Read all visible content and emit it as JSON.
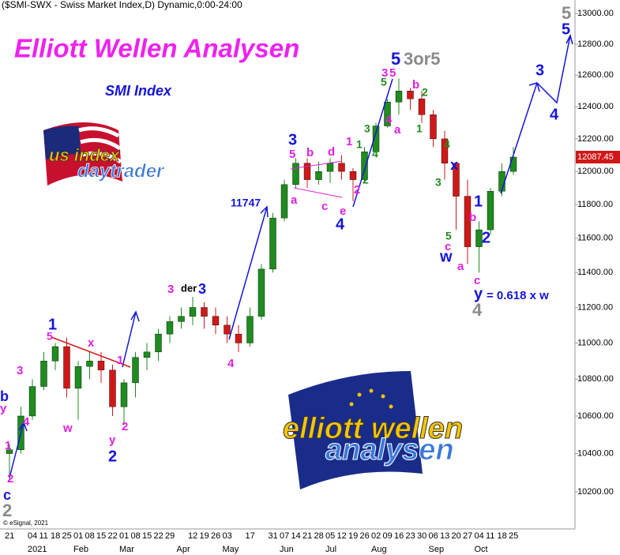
{
  "chart_data": {
    "type": "candlestick",
    "header": "($SMI-SWX - Swiss Market Index,D) Dynamic,0:00-24:00",
    "title": "Elliott Wellen Analysen",
    "subtitle": "SMI Index",
    "copyright": "© eSignal, 2021",
    "logo_texts": [
      "us index",
      "daytrader",
      "elliott wellen",
      "analysen"
    ],
    "log_scale": true,
    "up_color": "#1e8c1e",
    "down_color": "#d01818",
    "categories": [
      "21",
      null,
      "04",
      "11",
      "18",
      "25",
      "01",
      "08",
      "15",
      "22",
      "01",
      "08",
      "15",
      "22",
      "29",
      null,
      "12",
      "19",
      "26",
      "03",
      null,
      "17",
      null,
      "31",
      "07",
      "14",
      "21",
      "28",
      "05",
      "12",
      "19",
      "26",
      "02",
      "09",
      "16",
      "23",
      "30",
      "06",
      "13",
      "20",
      "27",
      "04",
      "11",
      "18",
      "25"
    ],
    "month_labels": [
      null,
      null,
      "2021",
      null,
      null,
      null,
      "Feb",
      null,
      null,
      null,
      "Mar",
      null,
      null,
      null,
      null,
      "Apr",
      null,
      null,
      null,
      "May",
      null,
      null,
      null,
      null,
      "Jun",
      null,
      null,
      null,
      "Jul",
      null,
      null,
      null,
      "Aug",
      null,
      null,
      null,
      null,
      "Sep",
      null,
      null,
      null,
      "Oct",
      null,
      null,
      null
    ],
    "open": [
      10400,
      10420,
      10600,
      10760,
      10900,
      10980,
      10750,
      10870,
      10900,
      10850,
      10650,
      10780,
      10920,
      10950,
      11050,
      11120,
      11150,
      11200,
      11150,
      11100,
      11050,
      11000,
      11150,
      11420,
      11720,
      11920,
      12050,
      11950,
      12000,
      12050,
      12000,
      11950,
      12120,
      12280,
      12430,
      12500,
      12450,
      12350,
      12200,
      12050,
      11850,
      11550,
      11650,
      11880,
      12000
    ],
    "high": [
      10450,
      10650,
      10800,
      10950,
      11000,
      11030,
      10900,
      10950,
      10950,
      10880,
      10800,
      10950,
      11000,
      11080,
      11150,
      11200,
      11260,
      11230,
      11200,
      11150,
      11100,
      11200,
      11450,
      11750,
      11950,
      12080,
      12080,
      12060,
      12080,
      12100,
      12020,
      12150,
      12300,
      12450,
      12580,
      12520,
      12500,
      12380,
      12250,
      12050,
      11950,
      11700,
      11900,
      12050,
      12150
    ],
    "low": [
      10250,
      10400,
      10580,
      10740,
      10850,
      10700,
      10580,
      10800,
      10780,
      10600,
      10550,
      10700,
      10850,
      10900,
      11000,
      11080,
      11100,
      11080,
      11050,
      11000,
      10950,
      10980,
      11130,
      11400,
      11700,
      11900,
      11900,
      11920,
      11930,
      11950,
      11820,
      11940,
      12100,
      12270,
      12350,
      12380,
      12300,
      12150,
      11950,
      11650,
      11450,
      11400,
      11620,
      11850,
      11980
    ],
    "close": [
      10420,
      10600,
      10760,
      10900,
      10980,
      10750,
      10870,
      10900,
      10850,
      10650,
      10780,
      10920,
      10950,
      11050,
      11120,
      11150,
      11200,
      11150,
      11100,
      11050,
      11000,
      11150,
      11420,
      11720,
      11920,
      12050,
      11950,
      12000,
      12050,
      12000,
      11950,
      12120,
      12280,
      12430,
      12500,
      12450,
      12350,
      12200,
      12050,
      11850,
      11550,
      11650,
      11880,
      12000,
      12087.45
    ],
    "last_price_label": "12087.45",
    "ylim": [
      10010,
      13090
    ],
    "yticks": [
      {
        "value": 10200,
        "label": "10200.00"
      },
      {
        "value": 10400,
        "label": "10400.00"
      },
      {
        "value": 10600,
        "label": "10600.00"
      },
      {
        "value": 10800,
        "label": "10800.00"
      },
      {
        "value": 11000,
        "label": "11000.00"
      },
      {
        "value": 11200,
        "label": "11200.00"
      },
      {
        "value": 11400,
        "label": "11400.00"
      },
      {
        "value": 11600,
        "label": "11600.00"
      },
      {
        "value": 11800,
        "label": "11800.00"
      },
      {
        "value": 12000,
        "label": "12000.00"
      },
      {
        "value": 12200,
        "label": "12200.00"
      },
      {
        "value": 12400,
        "label": "12400.00"
      },
      {
        "value": 12600,
        "label": "12600.00"
      },
      {
        "value": 12800,
        "label": "12800.00"
      },
      {
        "value": 13000,
        "label": "13000.00"
      }
    ],
    "annotations": [
      {
        "text": "c",
        "color": "#1515d8"
      },
      {
        "text": "2",
        "color": "#8a8a8a"
      },
      {
        "text": "2",
        "color": "#e020e0"
      },
      {
        "text": "1",
        "color": "#e020e0"
      },
      {
        "text": "y",
        "color": "#e020e0"
      },
      {
        "text": "b",
        "color": "#1515d8"
      },
      {
        "text": "4",
        "color": "#e020e0"
      },
      {
        "text": "3",
        "color": "#e020e0"
      },
      {
        "text": "1",
        "color": "#1515d8"
      },
      {
        "text": "5",
        "color": "#e020e0"
      },
      {
        "text": "x",
        "color": "#e020e0"
      },
      {
        "text": "w",
        "color": "#e020e0"
      },
      {
        "text": "1",
        "color": "#e020e0"
      },
      {
        "text": "y",
        "color": "#e020e0"
      },
      {
        "text": "2",
        "color": "#1515d8"
      },
      {
        "text": "2",
        "color": "#e020e0"
      },
      {
        "text": "3",
        "color": "#e020e0"
      },
      {
        "text": "der",
        "color": "#000000"
      },
      {
        "text": "3",
        "color": "#1515d8"
      },
      {
        "text": "4",
        "color": "#e020e0"
      },
      {
        "text": "11747",
        "color": "#1515d8"
      },
      {
        "text": "3",
        "color": "#1515d8"
      },
      {
        "text": "5",
        "color": "#e020e0"
      },
      {
        "text": "b",
        "color": "#e020e0"
      },
      {
        "text": "d",
        "color": "#e020e0"
      },
      {
        "text": "1",
        "color": "#e020e0"
      },
      {
        "text": "1",
        "color": "#1e8c1e"
      },
      {
        "text": "a",
        "color": "#e020e0"
      },
      {
        "text": "c",
        "color": "#e020e0"
      },
      {
        "text": "e",
        "color": "#e020e0"
      },
      {
        "text": "4",
        "color": "#1515d8"
      },
      {
        "text": "2",
        "color": "#e020e0"
      },
      {
        "text": "2",
        "color": "#1e8c1e"
      },
      {
        "text": "3",
        "color": "#1e8c1e"
      },
      {
        "text": "4",
        "color": "#1e8c1e"
      },
      {
        "text": "5",
        "color": "#1515d8"
      },
      {
        "text": "3or5",
        "color": "#8a8a8a"
      },
      {
        "text": "3",
        "color": "#e020e0"
      },
      {
        "text": "5",
        "color": "#e020e0"
      },
      {
        "text": "5",
        "color": "#1e8c1e"
      },
      {
        "text": "4",
        "color": "#e020e0"
      },
      {
        "text": "a",
        "color": "#e020e0"
      },
      {
        "text": "b",
        "color": "#e020e0"
      },
      {
        "text": "2",
        "color": "#1e8c1e"
      },
      {
        "text": "1",
        "color": "#1e8c1e"
      },
      {
        "text": "4",
        "color": "#1e8c1e"
      },
      {
        "text": "3",
        "color": "#1e8c1e"
      },
      {
        "text": "x",
        "color": "#1515d8"
      },
      {
        "text": "5",
        "color": "#1e8c1e"
      },
      {
        "text": "c",
        "color": "#e020e0"
      },
      {
        "text": "w",
        "color": "#1515d8"
      },
      {
        "text": "a",
        "color": "#e020e0"
      },
      {
        "text": "b",
        "color": "#e020e0"
      },
      {
        "text": "1",
        "color": "#1515d8"
      },
      {
        "text": "2",
        "color": "#1515d8"
      },
      {
        "text": "c",
        "color": "#e020e0"
      },
      {
        "text": "y",
        "color": "#1515d8"
      },
      {
        "text": "= 0.618 x w",
        "color": "#1515d8"
      },
      {
        "text": "4",
        "color": "#8a8a8a"
      },
      {
        "text": "3",
        "color": "#1515d8"
      },
      {
        "text": "4",
        "color": "#1515d8"
      },
      {
        "text": "5",
        "color": "#8a8a8a"
      },
      {
        "text": "5",
        "color": "#1515d8"
      }
    ]
  }
}
